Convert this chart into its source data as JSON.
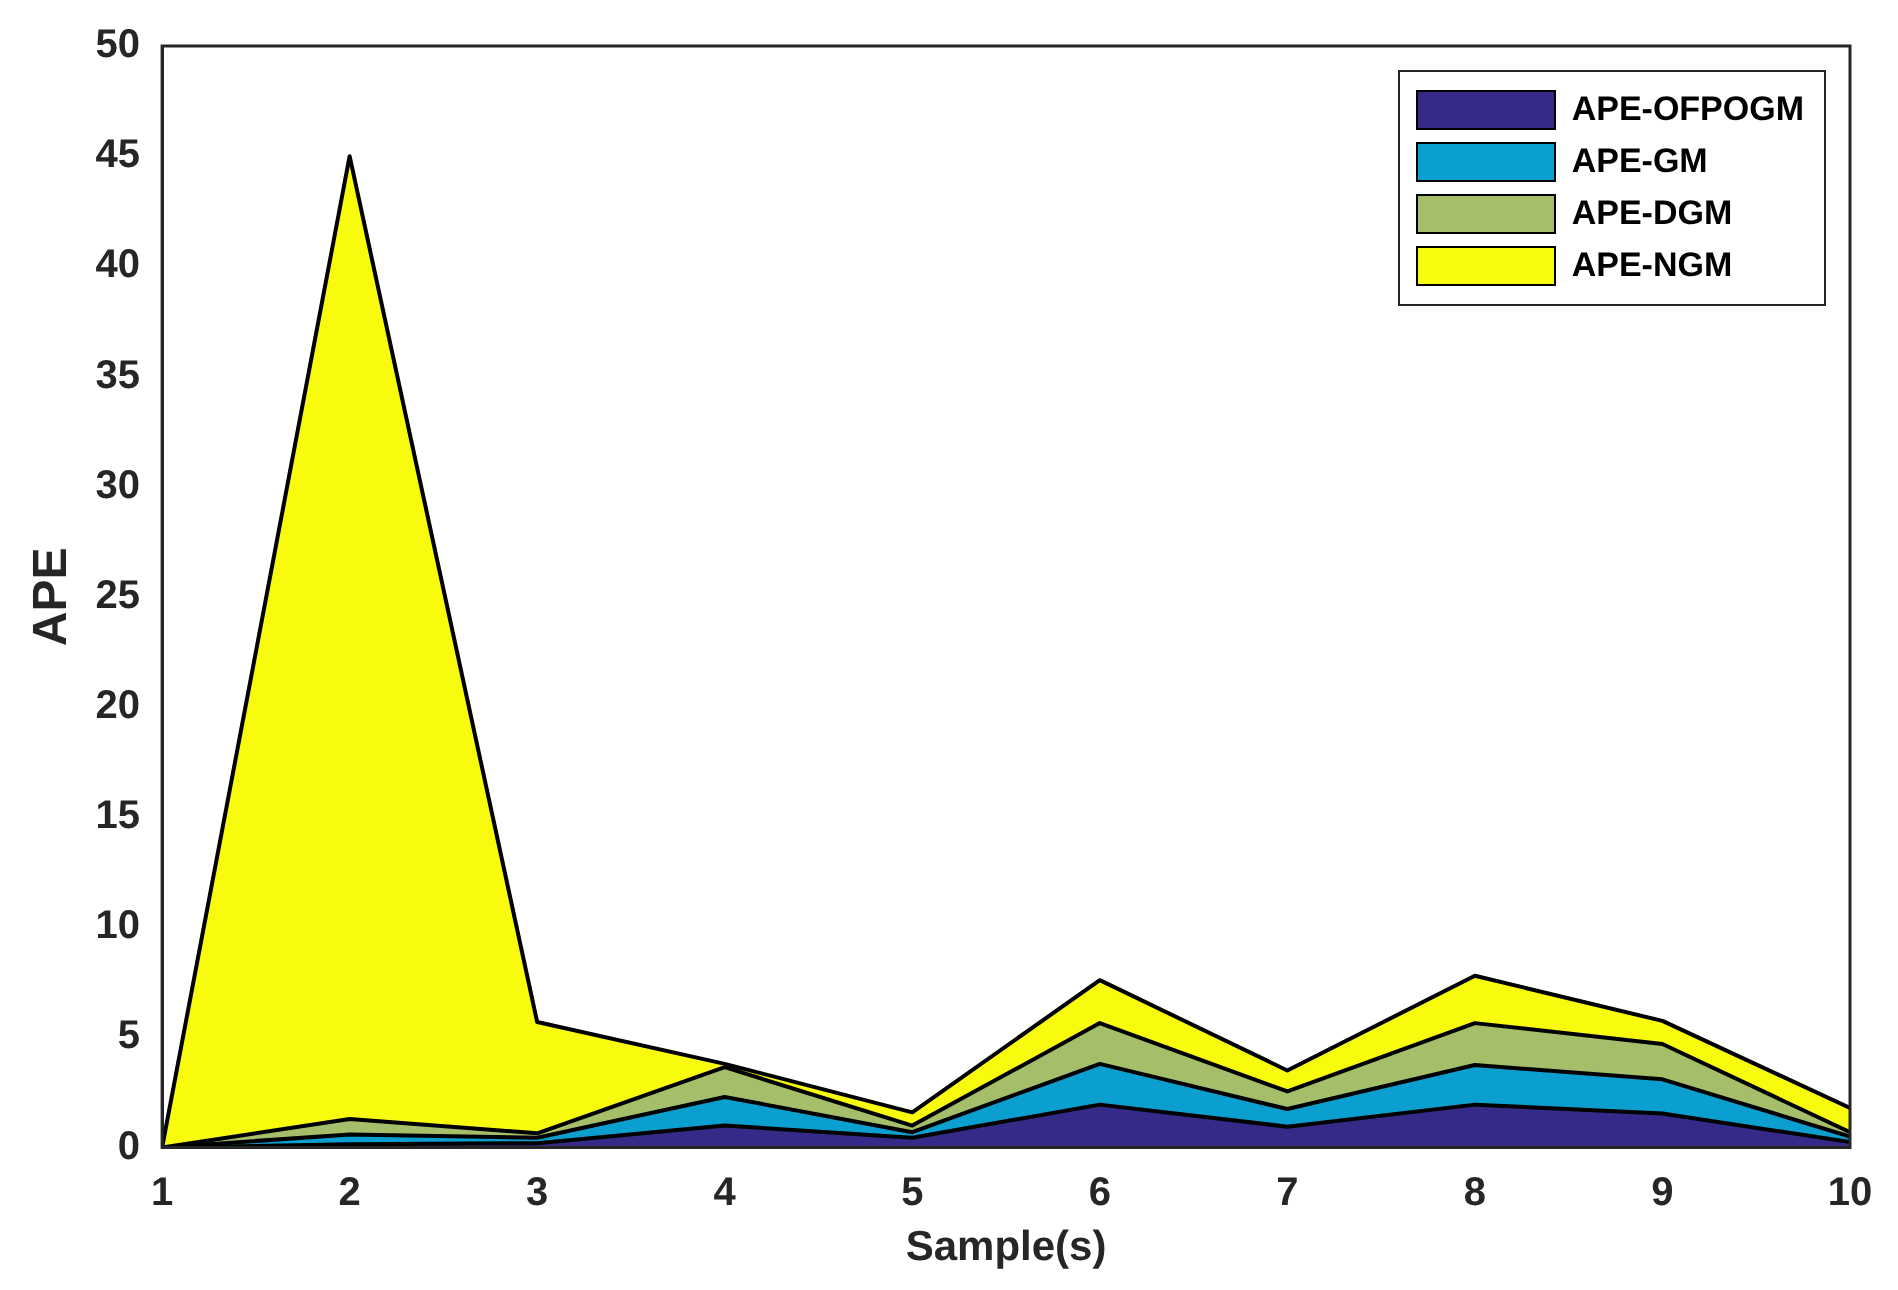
{
  "chart_data": {
    "type": "area",
    "stacked": true,
    "xlabel": "Sample(s)",
    "ylabel": "APE",
    "x": [
      1,
      2,
      3,
      4,
      5,
      6,
      7,
      8,
      9,
      10
    ],
    "series": [
      {
        "name": "APE-OFPOGM",
        "color": "#352a87",
        "values": [
          0,
          0.15,
          0.2,
          1.0,
          0.45,
          1.95,
          0.95,
          1.95,
          1.55,
          0.25
        ]
      },
      {
        "name": "APE-GM",
        "color": "#0b9fd0",
        "values": [
          0,
          0.45,
          0.25,
          1.3,
          0.25,
          1.85,
          0.8,
          1.8,
          1.55,
          0.25
        ]
      },
      {
        "name": "APE-DGM",
        "color": "#a5be6a",
        "values": [
          0,
          0.7,
          0.2,
          1.35,
          0.3,
          1.85,
          0.8,
          1.9,
          1.6,
          0.2
        ]
      },
      {
        "name": "APE-NGM",
        "color": "#f9fb0e",
        "values": [
          0,
          43.7,
          5.05,
          0.15,
          0.6,
          1.95,
          0.95,
          2.15,
          1.05,
          1.1
        ]
      }
    ],
    "xlim": [
      1,
      10
    ],
    "xticks": [
      1,
      2,
      3,
      4,
      5,
      6,
      7,
      8,
      9,
      10
    ],
    "ylim": [
      0,
      50
    ],
    "yticks": [
      0,
      5,
      10,
      15,
      20,
      25,
      30,
      35,
      40,
      45,
      50
    ],
    "grid": false,
    "legend": "top right"
  }
}
